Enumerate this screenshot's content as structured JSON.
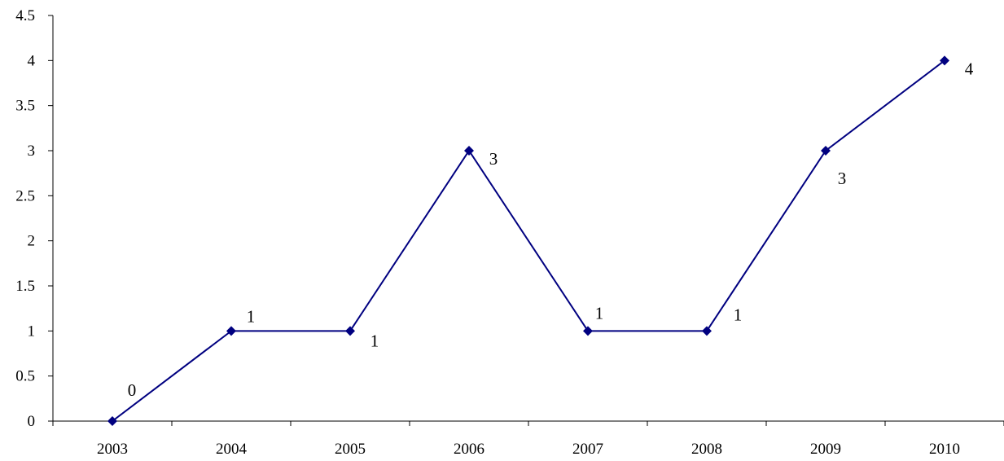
{
  "chart_data": {
    "type": "line",
    "title": "",
    "xlabel": "",
    "ylabel": "",
    "categories": [
      "2003",
      "2004",
      "2005",
      "2006",
      "2007",
      "2008",
      "2009",
      "2010"
    ],
    "series": [
      {
        "values": [
          0,
          1,
          1,
          3,
          1,
          1,
          3,
          4
        ],
        "color": "#000080",
        "marker": "diamond"
      }
    ],
    "data_labels": [
      "0",
      "1",
      "1",
      "3",
      "1",
      "1",
      "3",
      "4"
    ],
    "ylim": [
      0,
      4.5
    ],
    "yticks": [
      0,
      0.5,
      1,
      1.5,
      2,
      2.5,
      3,
      3.5,
      4,
      4.5
    ],
    "ytick_labels": [
      "0",
      "0.5",
      "1",
      "1.5",
      "2",
      "2.5",
      "3",
      "3.5",
      "4",
      "4.5"
    ],
    "grid": false,
    "legend": "none"
  }
}
